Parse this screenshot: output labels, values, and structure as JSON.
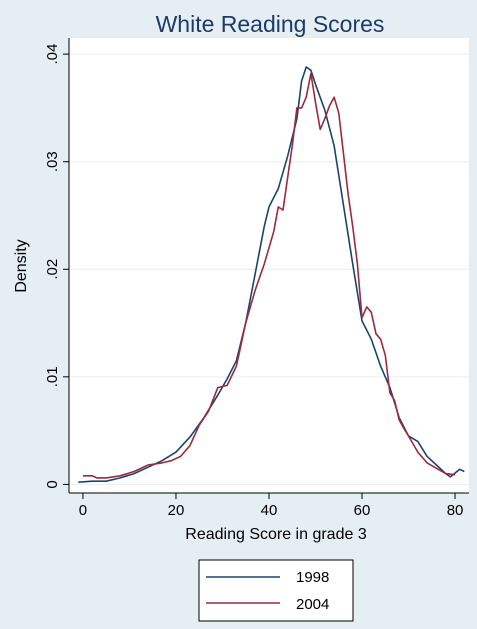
{
  "chart_data": {
    "type": "line",
    "title": "White Reading Scores",
    "xlabel": "Reading Score in grade 3",
    "ylabel": "Density",
    "xlim": [
      -3,
      83
    ],
    "ylim": [
      -0.0008,
      0.0415
    ],
    "xticks": [
      0,
      20,
      40,
      60,
      80
    ],
    "xtick_labels": [
      "0",
      "20",
      "40",
      "60",
      "80"
    ],
    "yticks": [
      0,
      0.01,
      0.02,
      0.03,
      0.04
    ],
    "ytick_labels": [
      "0",
      ".01",
      ".02",
      ".03",
      ".04"
    ],
    "grid": true,
    "legend_position": "bottom",
    "series": [
      {
        "name": "1998",
        "color": "#1a4470",
        "x": [
          -1,
          2,
          5,
          8,
          11,
          14,
          17,
          20,
          23,
          26,
          29,
          31,
          33,
          35,
          37,
          39,
          40,
          42,
          44,
          46,
          47,
          48,
          49,
          50,
          52,
          54,
          56,
          58,
          60,
          62,
          64,
          66,
          68,
          70,
          72,
          74,
          76,
          78,
          79,
          81,
          82
        ],
        "y": [
          0.0002,
          0.0003,
          0.0003,
          0.0006,
          0.001,
          0.0016,
          0.0022,
          0.003,
          0.0044,
          0.0062,
          0.0083,
          0.0098,
          0.0115,
          0.015,
          0.0195,
          0.024,
          0.0258,
          0.0275,
          0.0305,
          0.034,
          0.0375,
          0.0388,
          0.0385,
          0.0372,
          0.0348,
          0.0315,
          0.026,
          0.0205,
          0.0152,
          0.0135,
          0.011,
          0.009,
          0.0062,
          0.0045,
          0.004,
          0.0026,
          0.0018,
          0.001,
          0.0007,
          0.0014,
          0.0012
        ]
      },
      {
        "name": "2004",
        "color": "#9e2a3c",
        "x": [
          0,
          1,
          2,
          3,
          5,
          8,
          11,
          14,
          17,
          19,
          21,
          23,
          25,
          27,
          29,
          31,
          33,
          35,
          37,
          39,
          41,
          42,
          43,
          44,
          45,
          46,
          47,
          48,
          49,
          50,
          51,
          52,
          53,
          54,
          55,
          56,
          57,
          58,
          59,
          60,
          61,
          62,
          63,
          64,
          65,
          66,
          67,
          68,
          69,
          70,
          72,
          74,
          76,
          78,
          80
        ],
        "y": [
          0.0008,
          0.0008,
          0.0008,
          0.0006,
          0.0006,
          0.0008,
          0.0012,
          0.0018,
          0.002,
          0.0022,
          0.0026,
          0.0036,
          0.0055,
          0.0068,
          0.009,
          0.0092,
          0.011,
          0.015,
          0.018,
          0.0205,
          0.0235,
          0.0258,
          0.0255,
          0.0285,
          0.0315,
          0.035,
          0.035,
          0.036,
          0.0382,
          0.0355,
          0.033,
          0.034,
          0.0352,
          0.036,
          0.0345,
          0.0308,
          0.027,
          0.024,
          0.0205,
          0.0155,
          0.0165,
          0.016,
          0.014,
          0.0135,
          0.012,
          0.0085,
          0.0078,
          0.006,
          0.0052,
          0.0045,
          0.003,
          0.002,
          0.0015,
          0.001,
          0.0009
        ]
      }
    ]
  }
}
